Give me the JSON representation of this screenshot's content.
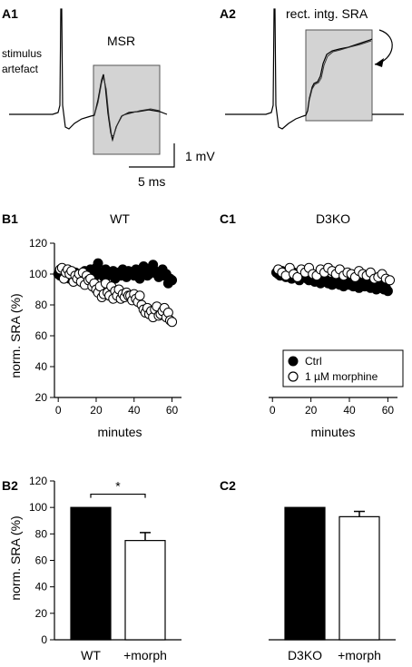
{
  "panels": {
    "A1": {
      "label": "A1",
      "stimulus_text": [
        "stimulus",
        "artefact"
      ],
      "msr_label": "MSR"
    },
    "A2": {
      "label": "A2",
      "annotation": "rect. intg. SRA"
    },
    "scalebar": {
      "vertical_label": "1 mV",
      "horizontal_label": "5 ms"
    },
    "B1": {
      "label": "B1"
    },
    "C1": {
      "label": "C1"
    },
    "B2": {
      "label": "B2"
    },
    "C2": {
      "label": "C2"
    }
  },
  "colors": {
    "ctrl": "#000000",
    "morphine_fill": "#ffffff",
    "shade": "#d3d3d3"
  },
  "chart_data": [
    {
      "id": "B1",
      "type": "scatter",
      "title": "WT",
      "xlabel": "minutes",
      "ylabel": "norm. SRA (%)",
      "xlim": [
        -2,
        65
      ],
      "ylim": [
        20,
        120
      ],
      "xticks": [
        0,
        20,
        40,
        60
      ],
      "yticks": [
        20,
        40,
        60,
        80,
        100,
        120
      ],
      "series": [
        {
          "name": "Ctrl",
          "marker": "filled-circle",
          "x": [
            0,
            1,
            2,
            3,
            4,
            5,
            6,
            7,
            8,
            9,
            10,
            11,
            12,
            13,
            14,
            15,
            16,
            17,
            18,
            19,
            20,
            21,
            22,
            23,
            24,
            25,
            26,
            27,
            28,
            29,
            30,
            31,
            32,
            33,
            34,
            35,
            36,
            37,
            38,
            39,
            40,
            41,
            42,
            43,
            44,
            45,
            46,
            47,
            48,
            49,
            50,
            51,
            52,
            53,
            54,
            55,
            56,
            57,
            58,
            59,
            60
          ],
          "y": [
            100,
            99,
            101,
            98,
            100,
            102,
            97,
            100,
            99,
            101,
            96,
            100,
            98,
            100,
            102,
            99,
            101,
            103,
            100,
            98,
            104,
            107,
            101,
            100,
            98,
            103,
            99,
            101,
            100,
            102,
            97,
            100,
            101,
            99,
            103,
            100,
            98,
            102,
            100,
            101,
            99,
            103,
            100,
            97,
            102,
            105,
            101,
            99,
            100,
            104,
            106,
            102,
            100,
            98,
            101,
            103,
            99,
            100,
            94,
            97,
            96
          ]
        },
        {
          "name": "1 µM morphine",
          "marker": "open-circle",
          "x": [
            1,
            2,
            3,
            4,
            5,
            6,
            7,
            8,
            9,
            10,
            11,
            12,
            13,
            14,
            15,
            16,
            17,
            18,
            19,
            20,
            21,
            22,
            23,
            24,
            25,
            26,
            27,
            28,
            29,
            30,
            31,
            32,
            33,
            34,
            35,
            36,
            37,
            38,
            39,
            40,
            41,
            42,
            43,
            44,
            45,
            46,
            47,
            48,
            49,
            50,
            51,
            52,
            53,
            54,
            55,
            56,
            57,
            58,
            59,
            60
          ],
          "y": [
            103,
            104,
            97,
            101,
            103,
            100,
            102,
            95,
            99,
            97,
            100,
            95,
            101,
            93,
            99,
            96,
            97,
            92,
            94,
            90,
            88,
            92,
            85,
            87,
            94,
            88,
            86,
            92,
            84,
            89,
            86,
            90,
            84,
            87,
            85,
            88,
            86,
            86,
            83,
            87,
            84,
            82,
            86,
            80,
            77,
            75,
            78,
            74,
            76,
            72,
            77,
            79,
            73,
            74,
            76,
            78,
            72,
            75,
            70,
            69
          ]
        }
      ],
      "legend": {
        "position": "none"
      }
    },
    {
      "id": "C1",
      "type": "scatter",
      "title": "D3KO",
      "xlabel": "minutes",
      "ylabel": "",
      "xlim": [
        -2,
        65
      ],
      "ylim": [
        20,
        120
      ],
      "xticks": [
        0,
        20,
        40,
        60
      ],
      "yticks": [],
      "series": [
        {
          "name": "Ctrl",
          "marker": "filled-circle",
          "x": [
            2,
            3,
            4,
            5,
            6,
            7,
            8,
            9,
            10,
            11,
            12,
            13,
            14,
            15,
            16,
            17,
            18,
            19,
            20,
            21,
            22,
            23,
            24,
            25,
            26,
            27,
            28,
            29,
            30,
            31,
            32,
            33,
            34,
            35,
            36,
            37,
            38,
            39,
            40,
            41,
            42,
            43,
            44,
            45,
            46,
            47,
            48,
            49,
            50,
            51,
            52,
            53,
            54,
            55,
            56,
            57,
            58,
            59,
            60
          ],
          "y": [
            101,
            100,
            99,
            102,
            100,
            98,
            99,
            100,
            97,
            101,
            99,
            98,
            96,
            99,
            100,
            98,
            97,
            96,
            99,
            97,
            95,
            98,
            96,
            94,
            97,
            95,
            96,
            94,
            95,
            93,
            96,
            94,
            97,
            93,
            95,
            92,
            96,
            94,
            93,
            95,
            92,
            94,
            93,
            91,
            93,
            95,
            92,
            94,
            92,
            91,
            93,
            92,
            90,
            92,
            91,
            93,
            90,
            91,
            89
          ]
        },
        {
          "name": "1 µM morphine",
          "marker": "open-circle",
          "x": [
            3,
            5,
            7,
            9,
            11,
            13,
            15,
            17,
            19,
            21,
            23,
            25,
            27,
            29,
            31,
            33,
            35,
            37,
            39,
            41,
            43,
            45,
            47,
            49,
            51,
            53,
            55,
            57,
            59,
            61
          ],
          "y": [
            103,
            101,
            99,
            104,
            100,
            98,
            103,
            101,
            104,
            100,
            99,
            103,
            101,
            104,
            102,
            100,
            103,
            99,
            101,
            100,
            98,
            102,
            100,
            99,
            101,
            97,
            98,
            100,
            97,
            96
          ]
        }
      ],
      "legend": {
        "position": "bottom-right",
        "entries": [
          "Ctrl",
          "1 µM morphine"
        ]
      }
    },
    {
      "id": "B2",
      "type": "bar",
      "title": "",
      "ylabel": "norm. SRA (%)",
      "ylim": [
        0,
        120
      ],
      "yticks": [
        0,
        20,
        40,
        60,
        80,
        100,
        120
      ],
      "categories": [
        "WT",
        "+morph"
      ],
      "values": [
        100,
        75
      ],
      "errors": [
        0,
        6
      ],
      "fills": [
        "#000000",
        "#ffffff"
      ],
      "significance": "*"
    },
    {
      "id": "C2",
      "type": "bar",
      "title": "",
      "ylabel": "",
      "ylim": [
        0,
        120
      ],
      "categories": [
        "D3KO",
        "+morph"
      ],
      "values": [
        100,
        93
      ],
      "errors": [
        0,
        4
      ],
      "fills": [
        "#000000",
        "#ffffff"
      ]
    }
  ]
}
